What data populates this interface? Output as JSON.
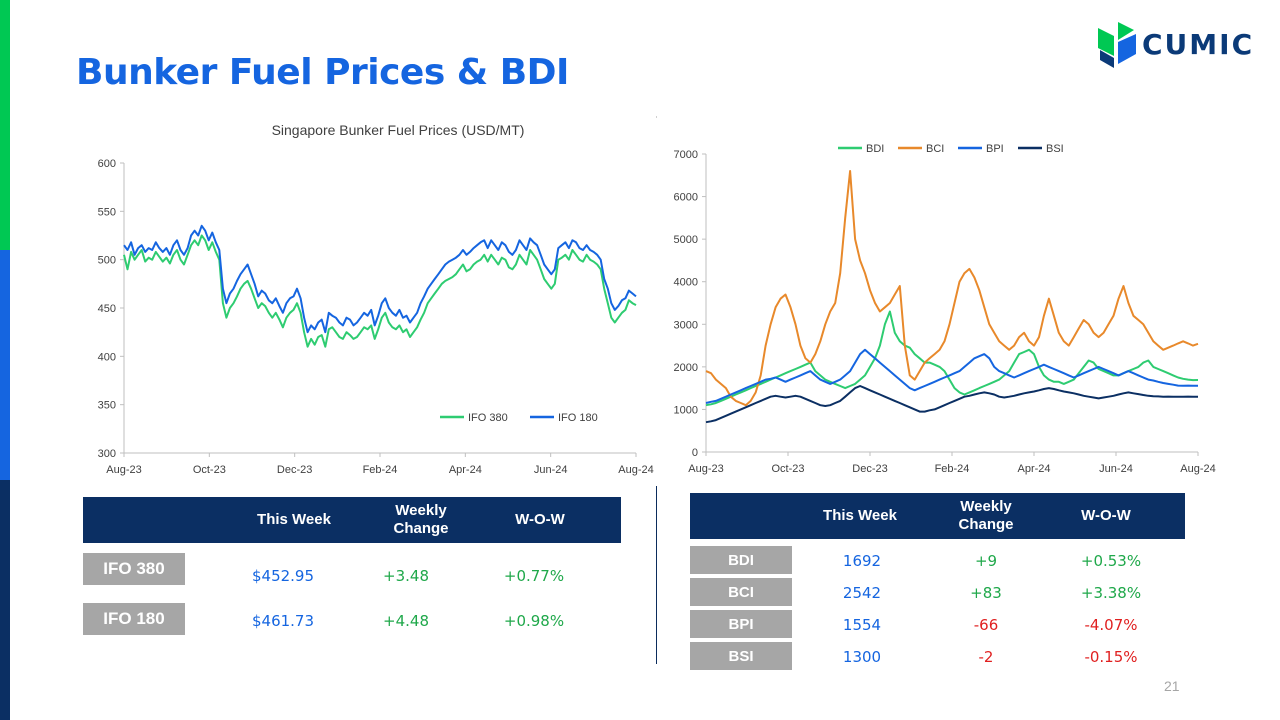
{
  "slide": {
    "title": "Bunker Fuel Prices & BDI",
    "page_number": "21",
    "brand": {
      "name": "CUMIC",
      "color": "#0b3a78",
      "icon": "cumic-leaf-logo-icon"
    },
    "accent_colors": [
      "#00c853",
      "#1565e0",
      "#0b2f63"
    ]
  },
  "fuel_table": {
    "headers": [
      "",
      "This Week",
      "Weekly Change",
      "W-O-W"
    ],
    "rows": [
      {
        "label": "IFO 380",
        "this_week": "$452.95",
        "weekly_change": "+3.48",
        "wow": "+0.77%"
      },
      {
        "label": "IFO 180",
        "this_week": "$461.73",
        "weekly_change": "+4.48",
        "wow": "+0.98%"
      }
    ]
  },
  "bdi_table": {
    "headers": [
      "",
      "This Week",
      "Weekly Change",
      "W-O-W"
    ],
    "rows": [
      {
        "label": "BDI",
        "this_week": "1692",
        "weekly_change": "+9",
        "wow": "+0.53%"
      },
      {
        "label": "BCI",
        "this_week": "2542",
        "weekly_change": "+83",
        "wow": "+3.38%"
      },
      {
        "label": "BPI",
        "this_week": "1554",
        "weekly_change": "-66",
        "wow": "-4.07%"
      },
      {
        "label": "BSI",
        "this_week": "1300",
        "weekly_change": "-2",
        "wow": "-0.15%"
      }
    ],
    "colors": {
      "positive": "#1fa84a",
      "negative": "#e02020",
      "value": "#1565e0"
    }
  },
  "chart_data": [
    {
      "type": "line",
      "title": "Singapore Bunker Fuel Prices (USD/MT)",
      "xlabel": "",
      "ylabel": "",
      "x_ticks": [
        "Aug-23",
        "Oct-23",
        "Dec-23",
        "Feb-24",
        "Apr-24",
        "Jun-24",
        "Aug-24"
      ],
      "ylim": [
        300,
        600
      ],
      "y_ticks": [
        300,
        350,
        400,
        450,
        500,
        550,
        600
      ],
      "grid": false,
      "legend_position": "bottom-right",
      "series": [
        {
          "name": "IFO 380",
          "color": "#2ecc71",
          "values": [
            505,
            490,
            508,
            500,
            505,
            510,
            498,
            502,
            500,
            508,
            503,
            498,
            502,
            496,
            505,
            510,
            500,
            495,
            505,
            515,
            520,
            515,
            525,
            520,
            510,
            518,
            508,
            500,
            455,
            440,
            450,
            455,
            462,
            470,
            475,
            478,
            470,
            460,
            450,
            455,
            452,
            445,
            440,
            445,
            438,
            430,
            440,
            445,
            448,
            455,
            445,
            425,
            410,
            418,
            412,
            420,
            422,
            410,
            428,
            430,
            425,
            420,
            418,
            425,
            422,
            418,
            420,
            425,
            430,
            428,
            432,
            418,
            428,
            440,
            445,
            435,
            430,
            428,
            432,
            425,
            428,
            420,
            425,
            430,
            438,
            445,
            455,
            460,
            465,
            470,
            475,
            478,
            480,
            482,
            485,
            490,
            495,
            488,
            490,
            495,
            498,
            500,
            505,
            498,
            505,
            500,
            495,
            502,
            500,
            492,
            490,
            495,
            505,
            500,
            495,
            510,
            505,
            500,
            490,
            480,
            475,
            470,
            475,
            500,
            502,
            505,
            500,
            510,
            505,
            500,
            498,
            505,
            500,
            498,
            495,
            490,
            470,
            455,
            440,
            435,
            440,
            445,
            448,
            458,
            455,
            453
          ]
        },
        {
          "name": "IFO 180",
          "color": "#1565e0",
          "values": [
            515,
            510,
            518,
            505,
            512,
            515,
            508,
            512,
            510,
            518,
            512,
            508,
            512,
            505,
            515,
            520,
            510,
            505,
            512,
            525,
            530,
            525,
            535,
            530,
            520,
            528,
            518,
            510,
            470,
            455,
            465,
            470,
            478,
            485,
            490,
            495,
            485,
            475,
            462,
            468,
            465,
            458,
            455,
            460,
            452,
            445,
            455,
            460,
            462,
            470,
            460,
            440,
            425,
            432,
            428,
            435,
            438,
            425,
            445,
            442,
            440,
            435,
            432,
            440,
            438,
            432,
            435,
            440,
            445,
            442,
            448,
            432,
            442,
            455,
            460,
            450,
            445,
            442,
            448,
            440,
            442,
            435,
            440,
            445,
            455,
            462,
            470,
            475,
            480,
            485,
            490,
            495,
            498,
            500,
            502,
            505,
            510,
            505,
            508,
            512,
            515,
            518,
            520,
            512,
            520,
            515,
            510,
            518,
            515,
            508,
            505,
            510,
            520,
            515,
            510,
            522,
            518,
            515,
            505,
            495,
            490,
            485,
            490,
            512,
            515,
            518,
            512,
            520,
            518,
            512,
            510,
            515,
            510,
            508,
            505,
            500,
            480,
            470,
            455,
            448,
            452,
            458,
            460,
            468,
            465,
            462
          ]
        }
      ]
    },
    {
      "type": "line",
      "title": "",
      "xlabel": "",
      "ylabel": "",
      "x_ticks": [
        "Aug-23",
        "Oct-23",
        "Dec-23",
        "Feb-24",
        "Apr-24",
        "Jun-24",
        "Aug-24"
      ],
      "ylim": [
        0,
        7000
      ],
      "y_ticks": [
        0,
        1000,
        2000,
        3000,
        4000,
        5000,
        6000,
        7000
      ],
      "grid": false,
      "legend_position": "top",
      "series": [
        {
          "name": "BDI",
          "color": "#2ecc71",
          "values": [
            1100,
            1120,
            1150,
            1200,
            1250,
            1300,
            1350,
            1400,
            1450,
            1500,
            1550,
            1600,
            1650,
            1700,
            1750,
            1800,
            1850,
            1900,
            1950,
            2000,
            2050,
            2100,
            1900,
            1800,
            1700,
            1650,
            1600,
            1550,
            1500,
            1550,
            1600,
            1700,
            1800,
            2000,
            2200,
            2500,
            3000,
            3300,
            2800,
            2600,
            2500,
            2450,
            2300,
            2200,
            2100,
            2100,
            2050,
            2000,
            1900,
            1700,
            1500,
            1400,
            1350,
            1400,
            1450,
            1500,
            1550,
            1600,
            1650,
            1700,
            1800,
            1900,
            2100,
            2300,
            2350,
            2400,
            2300,
            2000,
            1800,
            1700,
            1650,
            1650,
            1600,
            1650,
            1700,
            1850,
            2000,
            2150,
            2100,
            1950,
            1900,
            1850,
            1800,
            1800,
            1850,
            1900,
            1950,
            2000,
            2100,
            2150,
            2000,
            1950,
            1900,
            1850,
            1800,
            1750,
            1720,
            1700,
            1690,
            1692
          ]
        },
        {
          "name": "BCI",
          "color": "#e8892b",
          "values": [
            1900,
            1850,
            1700,
            1600,
            1500,
            1300,
            1200,
            1150,
            1100,
            1200,
            1400,
            1800,
            2500,
            3000,
            3400,
            3600,
            3700,
            3400,
            3000,
            2500,
            2200,
            2100,
            2300,
            2600,
            3000,
            3300,
            3500,
            4200,
            5500,
            6600,
            5000,
            4500,
            4200,
            3800,
            3500,
            3300,
            3400,
            3500,
            3700,
            3900,
            2500,
            1800,
            1700,
            1900,
            2100,
            2200,
            2300,
            2400,
            2600,
            3000,
            3500,
            4000,
            4200,
            4300,
            4100,
            3800,
            3400,
            3000,
            2800,
            2600,
            2500,
            2400,
            2500,
            2700,
            2800,
            2600,
            2500,
            2700,
            3200,
            3600,
            3200,
            2800,
            2600,
            2500,
            2700,
            2900,
            3100,
            3000,
            2800,
            2700,
            2800,
            3000,
            3200,
            3600,
            3900,
            3500,
            3200,
            3100,
            3000,
            2800,
            2600,
            2500,
            2400,
            2450,
            2500,
            2550,
            2600,
            2550,
            2500,
            2542
          ]
        },
        {
          "name": "BPI",
          "color": "#1565e0",
          "values": [
            1150,
            1180,
            1200,
            1250,
            1300,
            1350,
            1400,
            1450,
            1500,
            1550,
            1600,
            1650,
            1700,
            1720,
            1750,
            1700,
            1650,
            1700,
            1750,
            1800,
            1850,
            1900,
            1800,
            1700,
            1650,
            1600,
            1650,
            1700,
            1800,
            1900,
            2100,
            2300,
            2400,
            2300,
            2200,
            2100,
            2000,
            1900,
            1800,
            1700,
            1600,
            1500,
            1450,
            1500,
            1550,
            1600,
            1650,
            1700,
            1750,
            1800,
            1850,
            1900,
            2000,
            2100,
            2200,
            2250,
            2300,
            2200,
            2000,
            1900,
            1850,
            1800,
            1750,
            1800,
            1850,
            1900,
            1950,
            2000,
            2050,
            2000,
            1950,
            1900,
            1850,
            1800,
            1750,
            1800,
            1850,
            1900,
            1950,
            2000,
            1950,
            1900,
            1850,
            1800,
            1850,
            1900,
            1850,
            1800,
            1750,
            1700,
            1680,
            1650,
            1620,
            1600,
            1580,
            1560,
            1554,
            1560,
            1555,
            1554
          ]
        },
        {
          "name": "BSI",
          "color": "#0b2f63",
          "values": [
            700,
            720,
            750,
            800,
            850,
            900,
            950,
            1000,
            1050,
            1100,
            1150,
            1200,
            1250,
            1300,
            1320,
            1300,
            1280,
            1300,
            1320,
            1300,
            1250,
            1200,
            1150,
            1100,
            1080,
            1100,
            1150,
            1200,
            1300,
            1400,
            1500,
            1550,
            1500,
            1450,
            1400,
            1350,
            1300,
            1250,
            1200,
            1150,
            1100,
            1050,
            1000,
            950,
            950,
            980,
            1000,
            1050,
            1100,
            1150,
            1200,
            1250,
            1300,
            1320,
            1350,
            1380,
            1400,
            1380,
            1350,
            1300,
            1280,
            1300,
            1320,
            1350,
            1380,
            1400,
            1420,
            1450,
            1480,
            1500,
            1480,
            1450,
            1420,
            1400,
            1380,
            1350,
            1320,
            1300,
            1280,
            1260,
            1280,
            1300,
            1320,
            1350,
            1380,
            1400,
            1380,
            1360,
            1340,
            1320,
            1310,
            1305,
            1300,
            1302,
            1300,
            1298,
            1300,
            1302,
            1300,
            1300
          ]
        }
      ]
    }
  ]
}
